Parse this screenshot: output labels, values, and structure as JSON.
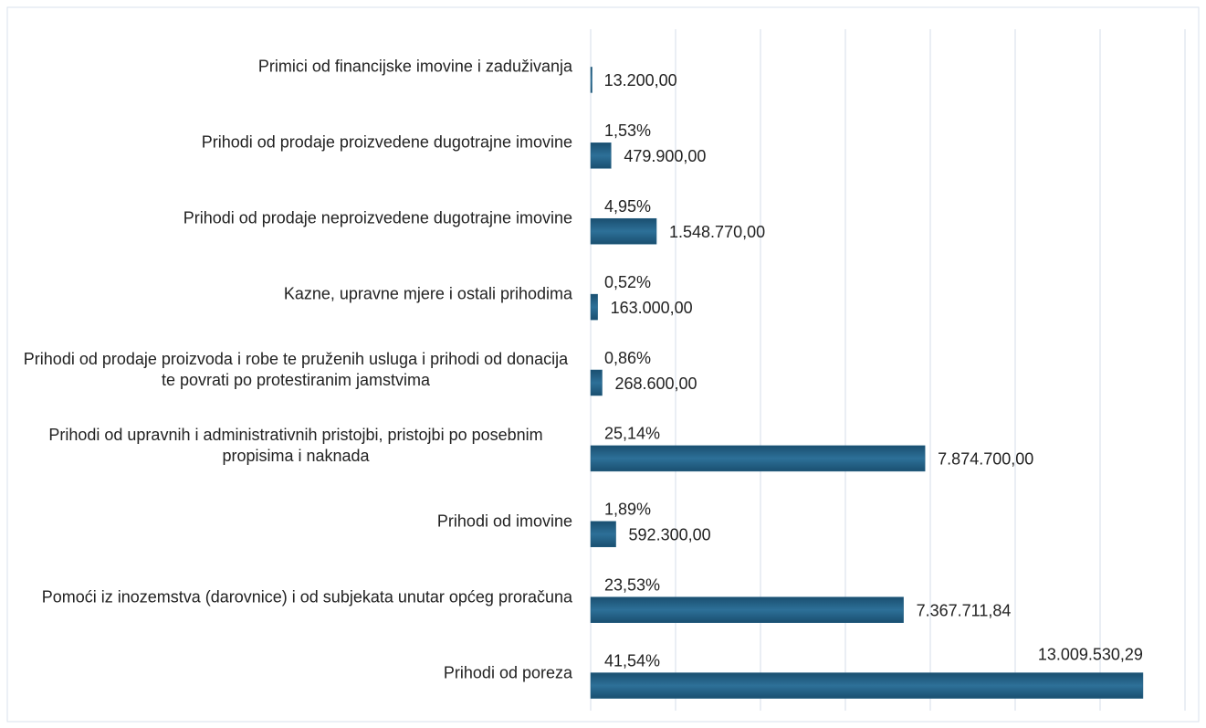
{
  "chart_data": {
    "type": "barh",
    "categories": [
      "Primici od financijske imovine i zaduživanja",
      "Prihodi od prodaje proizvedene dugotrajne imovine",
      "Prihodi od prodaje neproizvedene dugotrajne imovine",
      "Kazne, upravne mjere i ostali prihodima",
      "Prihodi od prodaje proizvoda i robe te pruženih usluga i prihodi od donacija te povrati po protestiranim jamstvima",
      "Prihodi od upravnih i administrativnih pristojbi, pristojbi po posebnim propisima i naknada",
      "Prihodi od imovine",
      "Pomoći iz inozemstva (darovnice) i od subjekata unutar općeg proračuna",
      "Prihodi od poreza"
    ],
    "values": [
      13200,
      479900,
      1548770,
      163000,
      268600,
      7874700,
      592300,
      7367711.84,
      13009530.29
    ],
    "value_labels": [
      "13.200,00",
      "479.900,00",
      "1.548.770,00",
      "163.000,00",
      "268.600,00",
      "7.874.700,00",
      "592.300,00",
      "7.367.711,84",
      "13.009.530,29"
    ],
    "shares": [
      null,
      1.53,
      4.95,
      0.52,
      0.86,
      25.14,
      1.89,
      23.53,
      41.54
    ],
    "share_labels": [
      null,
      "1,53%",
      "4,95%",
      "0,52%",
      "0,86%",
      "25,14%",
      "1,89%",
      "23,53%",
      "41,54%"
    ],
    "color": "#1f5c80",
    "xlim": [
      0,
      14000000
    ],
    "xticks": [
      0,
      2000000,
      4000000,
      6000000,
      8000000,
      10000000,
      12000000,
      14000000
    ],
    "grid": true
  }
}
